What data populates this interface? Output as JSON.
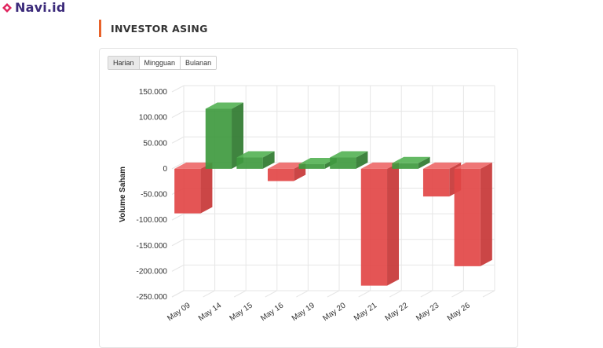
{
  "brand": {
    "name": "Navi.id"
  },
  "section": {
    "title": "INVESTOR ASING"
  },
  "tabs": [
    {
      "label": "Harian",
      "active": true
    },
    {
      "label": "Mingguan",
      "active": false
    },
    {
      "label": "Bulanan",
      "active": false
    }
  ],
  "colors": {
    "accent": "#e8622a",
    "brand": "#e0245e",
    "positive": "#3f9a3f",
    "negative": "#e24646"
  },
  "chart_data": {
    "type": "bar",
    "style": "3d",
    "categories": [
      "May 09",
      "May 14",
      "May 15",
      "May 16",
      "May 19",
      "May 20",
      "May 21",
      "May 22",
      "May 23",
      "May 26"
    ],
    "values": [
      -87000,
      117000,
      22000,
      -24000,
      9000,
      22000,
      -228000,
      11000,
      -54000,
      -190000
    ],
    "ylabel": "Volume Saham",
    "ylim": [
      -250000,
      150000
    ],
    "yticks": [
      "150.000",
      "100.000",
      "50.000",
      "0",
      "-50.000",
      "-100.000",
      "-150.000",
      "-200.000",
      "-250.000"
    ],
    "grid": true,
    "legend": "none"
  }
}
